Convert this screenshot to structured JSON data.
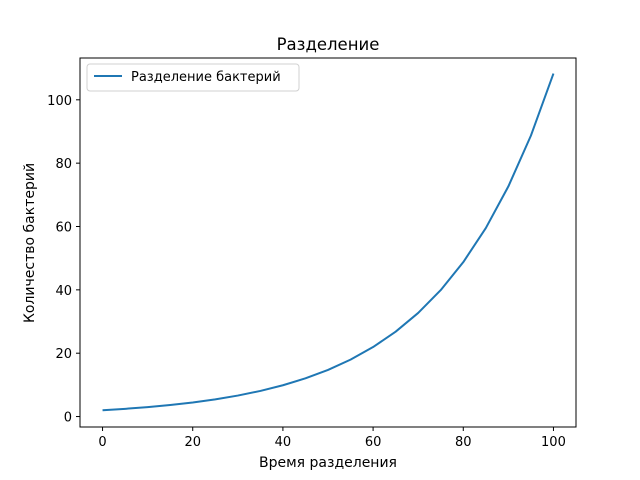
{
  "chart_data": {
    "type": "line",
    "title": "Разделение",
    "xlabel": "Время разделения",
    "ylabel": "Количество бактерий",
    "xlim": [
      -5,
      105
    ],
    "ylim": [
      -3.3,
      113.2
    ],
    "xticks": [
      0,
      20,
      40,
      60,
      80,
      100
    ],
    "yticks": [
      0,
      20,
      40,
      60,
      80,
      100
    ],
    "grid": false,
    "legend_position": "top-left",
    "series": [
      {
        "name": "Разделение бактерий",
        "color": "#1f77b4",
        "x": [
          0,
          5,
          10,
          15,
          20,
          25,
          30,
          35,
          40,
          45,
          50,
          55,
          60,
          65,
          70,
          75,
          80,
          85,
          90,
          95,
          100
        ],
        "y": [
          2.0,
          2.44,
          2.98,
          3.64,
          4.45,
          5.43,
          6.63,
          8.09,
          9.88,
          12.06,
          14.72,
          17.98,
          21.94,
          26.79,
          32.71,
          39.93,
          48.75,
          59.51,
          72.66,
          88.7,
          108.29
        ]
      }
    ]
  }
}
